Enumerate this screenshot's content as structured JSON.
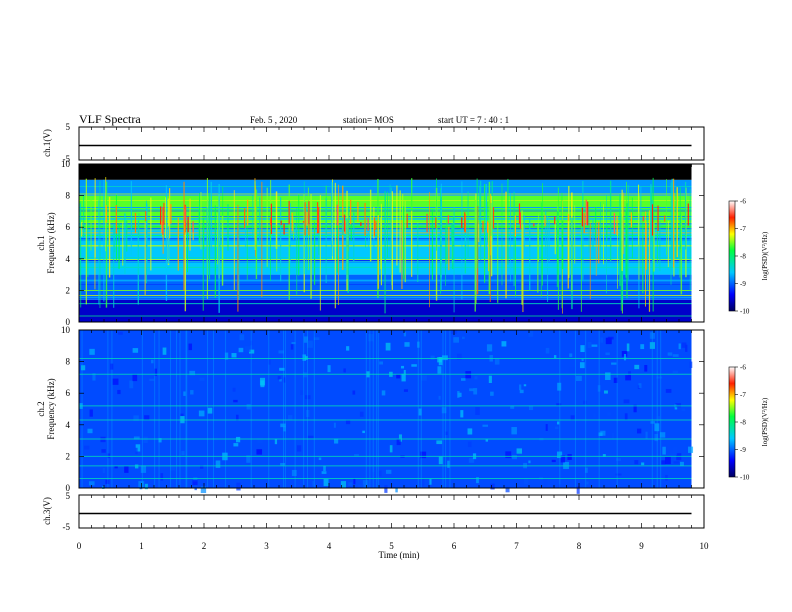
{
  "header": {
    "title": "VLF Spectra",
    "date": "Feb. 5 , 2020",
    "station": "station= MOS",
    "start": "start UT = 7 : 40 : 1"
  },
  "chart_data": [
    {
      "type": "line",
      "panel": "ch1-waveform",
      "ylabel": "ch.1(V)",
      "yticks": [
        "5",
        "0",
        "-5"
      ],
      "ylim": [
        -5,
        5
      ],
      "x": [
        0,
        9.8
      ],
      "values": [
        0,
        0
      ],
      "line_color": "#000000"
    },
    {
      "type": "heatmap",
      "panel": "ch1-spectrogram",
      "ylabel": "ch.1\nFrequency (kHz)",
      "yticks": [
        "0",
        "2",
        "4",
        "6",
        "8",
        "10"
      ],
      "ylim": [
        0,
        10
      ],
      "xlim": [
        0,
        9.8
      ],
      "colorbar": {
        "label": "log(PSD)(V²/Hz)",
        "ticks": [
          "-6",
          "-7",
          "-8",
          "-9",
          "-10"
        ],
        "range": [
          -10,
          -6
        ]
      },
      "description_bands_khz": [
        {
          "from": 0,
          "to": 1.4,
          "level": -9.6
        },
        {
          "from": 1.4,
          "to": 3.0,
          "level": -9.0
        },
        {
          "from": 3.0,
          "to": 5.8,
          "level": -8.6
        },
        {
          "from": 5.8,
          "to": 8.0,
          "level": -7.6
        },
        {
          "from": 8.0,
          "to": 9.0,
          "level": -8.8
        },
        {
          "from": 9.0,
          "to": 10.0,
          "level": -10.5
        }
      ]
    },
    {
      "type": "heatmap",
      "panel": "ch2-spectrogram",
      "ylabel": "ch.2\nFrequency (kHz)",
      "yticks": [
        "0",
        "2",
        "4",
        "6",
        "8",
        "10"
      ],
      "ylim": [
        0,
        10
      ],
      "xlim": [
        0,
        9.8
      ],
      "colorbar": {
        "label": "log(PSD)(V²/Hz)",
        "ticks": [
          "-6",
          "-7",
          "-8",
          "-9",
          "-10"
        ],
        "range": [
          -10,
          -6
        ]
      },
      "lines_khz": [
        8.2,
        7.2,
        5.2,
        4.3,
        3.1,
        2.0,
        1.4,
        0.6
      ]
    },
    {
      "type": "line",
      "panel": "ch3-waveform",
      "ylabel": "ch.3(V)",
      "yticks": [
        "5",
        "0",
        "-5"
      ],
      "ylim": [
        -5,
        5
      ],
      "x": [
        0,
        9.8
      ],
      "values": [
        0,
        0
      ],
      "line_color": "#000000"
    }
  ],
  "xaxis": {
    "label": "Time (min)",
    "ticks": [
      "0",
      "1",
      "2",
      "3",
      "4",
      "5",
      "6",
      "7",
      "8",
      "9",
      "10"
    ],
    "xlim": [
      0,
      10
    ]
  }
}
